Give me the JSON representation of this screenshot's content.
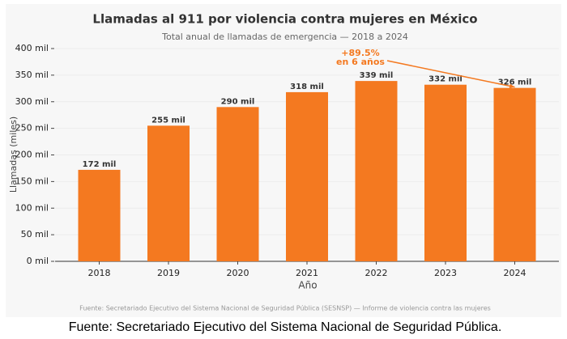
{
  "chart_data": {
    "type": "bar",
    "title": "Llamadas al 911 por violencia contra mujeres en México",
    "subtitle": "Total anual de llamadas de emergencia — 2018 a 2024",
    "x_label": "Año",
    "y_label": "Llamadas (miles)",
    "categories": [
      "2018",
      "2019",
      "2020",
      "2021",
      "2022",
      "2023",
      "2024"
    ],
    "values": [
      172,
      255,
      290,
      318,
      339,
      332,
      326
    ],
    "value_labels": [
      "172 mil",
      "255 mil",
      "290 mil",
      "318 mil",
      "339 mil",
      "332 mil",
      "326 mil"
    ],
    "color": "#f47920",
    "ylim": [
      0,
      400
    ],
    "yticks": [
      {
        "value": 0,
        "label": "0 mil"
      },
      {
        "value": 50,
        "label": "50 mil"
      },
      {
        "value": 100,
        "label": "100 mil"
      },
      {
        "value": 150,
        "label": "150 mil"
      },
      {
        "value": 200,
        "label": "200 mil"
      },
      {
        "value": 250,
        "label": "250 mil"
      },
      {
        "value": 300,
        "label": "300 mil"
      },
      {
        "value": 350,
        "label": "350 mil"
      },
      {
        "value": 400,
        "label": "400 mil"
      }
    ],
    "grid": true,
    "annotation": [
      "+89.5%",
      "en 6 años"
    ],
    "source_note": "Fuente: Secretariado Ejecutivo del Sistema Nacional de Seguridad Pública (SESNSP) — Informe de violencia contra las mujeres"
  },
  "caption": "Fuente: Secretariado Ejecutivo del Sistema Nacional de Seguridad Pública."
}
